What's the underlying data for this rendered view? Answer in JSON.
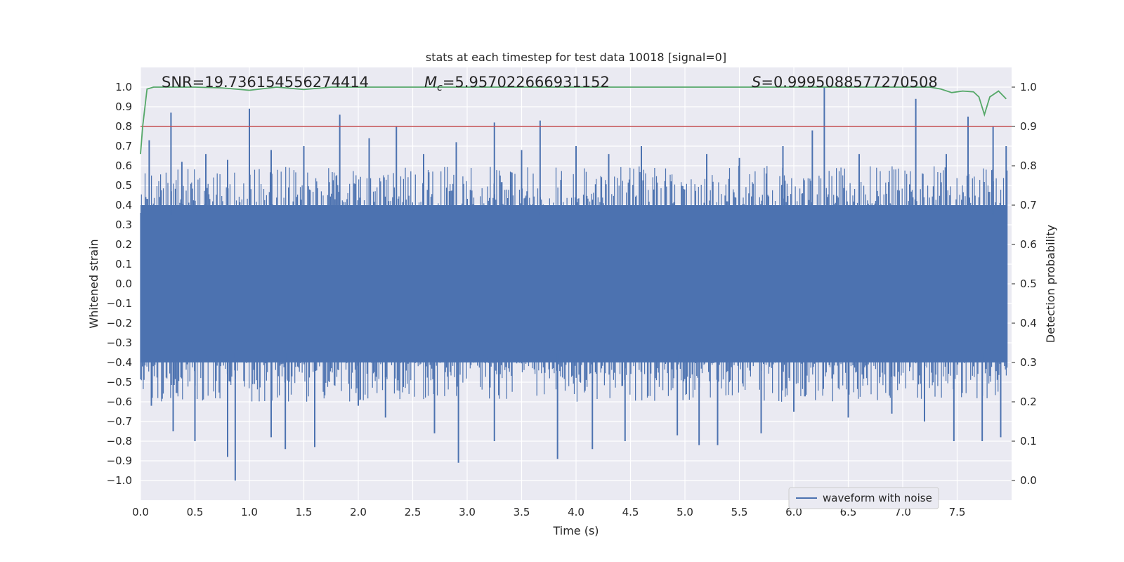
{
  "chart_data": {
    "type": "line",
    "title": "stats at each timestep for test data 10018 [signal=0]",
    "xlabel": "Time (s)",
    "ylabel": "Whitened strain",
    "y2label": "Detection probability",
    "xlim": [
      0.0,
      8.0
    ],
    "ylim": [
      -1.1,
      1.1
    ],
    "y2lim": [
      -0.05,
      1.05
    ],
    "xticks": [
      "0.0",
      "0.5",
      "1.0",
      "1.5",
      "2.0",
      "2.5",
      "3.0",
      "3.5",
      "4.0",
      "4.5",
      "5.0",
      "5.5",
      "6.0",
      "6.5",
      "7.0",
      "7.5"
    ],
    "yticks": [
      "1.0",
      "0.9",
      "0.8",
      "0.7",
      "0.6",
      "0.5",
      "0.4",
      "0.3",
      "0.2",
      "0.1",
      "0.0",
      "−0.1",
      "−0.2",
      "−0.3",
      "−0.4",
      "−0.5",
      "−0.6",
      "−0.7",
      "−0.8",
      "−0.9",
      "−1.0"
    ],
    "y2ticks": [
      "1.0",
      "0.9",
      "0.8",
      "0.7",
      "0.6",
      "0.5",
      "0.4",
      "0.3",
      "0.2",
      "0.1",
      "0.0"
    ],
    "grid": true,
    "legend": {
      "position": "lower-right",
      "entries": [
        "waveform with noise"
      ]
    },
    "annotations": {
      "snr": "SNR=19.736154556274414",
      "mc_label": "M",
      "mc_sub": "c",
      "mc_value": "=5.957022666931152",
      "s_label": "S",
      "s_value": "=0.9995088577270508"
    },
    "threshold": {
      "value": 0.9,
      "axis": "y2",
      "color": "#c44e52"
    },
    "series": [
      {
        "name": "waveform with noise",
        "axis": "y",
        "color": "#4c72b0",
        "envelope_upper": 0.4,
        "envelope_lower": -0.4,
        "peaks": [
          {
            "t": 0.08,
            "v": 0.73
          },
          {
            "t": 0.28,
            "v": 0.87
          },
          {
            "t": 0.38,
            "v": 0.62
          },
          {
            "t": 0.6,
            "v": 0.66
          },
          {
            "t": 0.8,
            "v": 0.63
          },
          {
            "t": 1.0,
            "v": 0.89
          },
          {
            "t": 1.2,
            "v": 0.68
          },
          {
            "t": 1.5,
            "v": 0.7
          },
          {
            "t": 1.83,
            "v": 0.86
          },
          {
            "t": 2.1,
            "v": 0.74
          },
          {
            "t": 2.35,
            "v": 0.8
          },
          {
            "t": 2.6,
            "v": 0.66
          },
          {
            "t": 2.9,
            "v": 0.72
          },
          {
            "t": 3.25,
            "v": 0.82
          },
          {
            "t": 3.5,
            "v": 0.68
          },
          {
            "t": 3.67,
            "v": 0.83
          },
          {
            "t": 4.0,
            "v": 0.7
          },
          {
            "t": 4.3,
            "v": 0.66
          },
          {
            "t": 4.6,
            "v": 0.7
          },
          {
            "t": 5.2,
            "v": 0.66
          },
          {
            "t": 5.5,
            "v": 0.64
          },
          {
            "t": 5.9,
            "v": 0.7
          },
          {
            "t": 6.17,
            "v": 0.78
          },
          {
            "t": 6.28,
            "v": 1.0
          },
          {
            "t": 6.6,
            "v": 0.66
          },
          {
            "t": 7.12,
            "v": 0.94
          },
          {
            "t": 7.4,
            "v": 0.66
          },
          {
            "t": 7.6,
            "v": 0.85
          },
          {
            "t": 7.83,
            "v": 0.8
          },
          {
            "t": 7.95,
            "v": 0.7
          },
          {
            "t": 0.1,
            "v": -0.62
          },
          {
            "t": 0.3,
            "v": -0.75
          },
          {
            "t": 0.5,
            "v": -0.8
          },
          {
            "t": 0.8,
            "v": -0.88
          },
          {
            "t": 0.87,
            "v": -1.0
          },
          {
            "t": 1.2,
            "v": -0.78
          },
          {
            "t": 1.33,
            "v": -0.84
          },
          {
            "t": 1.6,
            "v": -0.83
          },
          {
            "t": 2.0,
            "v": -0.62
          },
          {
            "t": 2.25,
            "v": -0.68
          },
          {
            "t": 2.7,
            "v": -0.76
          },
          {
            "t": 2.92,
            "v": -0.91
          },
          {
            "t": 3.25,
            "v": -0.8
          },
          {
            "t": 3.83,
            "v": -0.89
          },
          {
            "t": 4.15,
            "v": -0.84
          },
          {
            "t": 4.45,
            "v": -0.8
          },
          {
            "t": 4.93,
            "v": -0.77
          },
          {
            "t": 5.13,
            "v": -0.82
          },
          {
            "t": 5.3,
            "v": -0.82
          },
          {
            "t": 5.7,
            "v": -0.76
          },
          {
            "t": 6.0,
            "v": -0.65
          },
          {
            "t": 6.5,
            "v": -0.68
          },
          {
            "t": 6.9,
            "v": -0.66
          },
          {
            "t": 7.2,
            "v": -0.7
          },
          {
            "t": 7.47,
            "v": -0.8
          },
          {
            "t": 7.73,
            "v": -0.8
          },
          {
            "t": 7.9,
            "v": -0.78
          }
        ]
      },
      {
        "name": "detection probability",
        "axis": "y2",
        "color": "#55a868",
        "x": [
          0.0,
          0.02,
          0.06,
          0.12,
          0.25,
          0.5,
          0.75,
          1.0,
          1.25,
          1.5,
          1.75,
          2.0,
          2.5,
          3.0,
          3.5,
          4.0,
          4.5,
          5.0,
          5.5,
          6.0,
          6.5,
          7.0,
          7.25,
          7.35,
          7.45,
          7.55,
          7.65,
          7.7,
          7.75,
          7.8,
          7.88,
          7.95
        ],
        "y": [
          0.83,
          0.9,
          0.995,
          1.0,
          1.0,
          1.0,
          0.998,
          0.992,
          1.0,
          0.994,
          1.0,
          1.0,
          1.0,
          1.0,
          1.0,
          1.0,
          1.0,
          1.0,
          1.0,
          1.0,
          1.0,
          1.0,
          1.0,
          0.995,
          0.986,
          0.99,
          0.988,
          0.975,
          0.93,
          0.975,
          0.99,
          0.97
        ]
      }
    ]
  }
}
